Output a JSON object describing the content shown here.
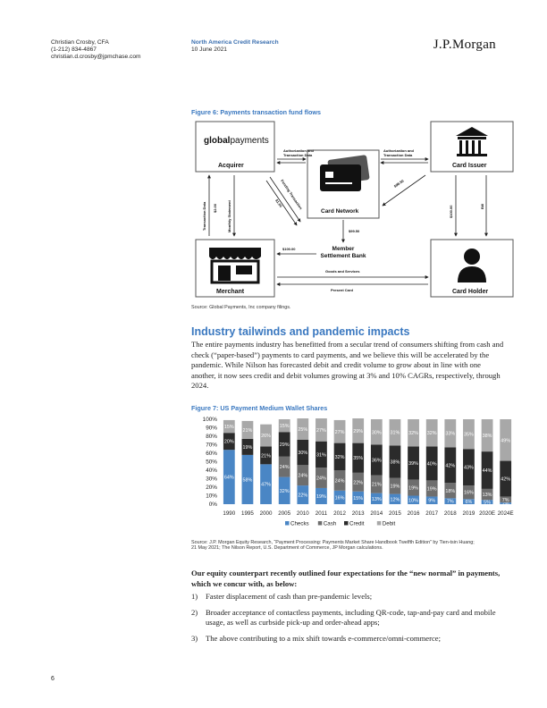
{
  "header": {
    "author_name": "Christian Crosby, CFA",
    "author_phone": "(1-212) 834-4867",
    "author_email": "christian.d.crosby@jpmchase.com",
    "report_name": "North America Credit Research",
    "report_date": "10 June 2021",
    "logo_text": "J.P.Morgan"
  },
  "figure6": {
    "title": "Figure 6: Payments transaction fund flows",
    "source": "Source: Global Payments, Inc company filings.",
    "brand_strong": "global",
    "brand_light": "payments",
    "nodes": {
      "acquirer": "Acquirer",
      "card_issuer": "Card Issuer",
      "card_network": "Card Network",
      "merchant": "Merchant",
      "card_holder": "Card Holder",
      "member_bank_line1": "Member",
      "member_bank_line2": "Settlement Bank"
    },
    "edges": {
      "auth_left_1": "Authorization and",
      "auth_left_2": "Transaction Data",
      "auth_right_1": "Authorization and",
      "auth_right_2": "Transaction Data",
      "funding_transaction": "Funding Transaction",
      "v_1_00": "$1.00",
      "v_98_50": "$98.50",
      "v_99_50": "$99.50",
      "v_100_bank": "$100.00",
      "v_100_holder": "$100.00",
      "bill": "Bill",
      "transaction_data": "Transaction Data",
      "v_2_00": "$2.00",
      "monthly_statement": "Monthly Statement",
      "goods_services": "Goods and Services",
      "present_card": "Present Card"
    }
  },
  "section": {
    "heading": "Industry tailwinds and pandemic impacts",
    "paragraph": "The entire payments industry has benefitted from a secular trend of consumers shifting from cash and check (“paper-based”) payments to card payments, and we believe this will be accelerated by the pandemic. While Nilson has forecasted debit and credit volume to grow about in line with one another, it now sees credit and debit volumes growing at 3% and 10% CAGRs, respectively, through 2024."
  },
  "figure7": {
    "title": "Figure 7: US Payment Medium Wallet Shares",
    "source_line1": "Source: J.P. Morgan Equity Research, “Payment Processing: Payments Market Share Handbook Twelfth Edition” by Tien-tsin Huang;",
    "source_line2": "21 May 2021; The Nilson Report, U.S. Department of Commerce, JP Morgan calculations."
  },
  "chart_data": {
    "type": "bar",
    "stacked": true,
    "percent": true,
    "categories": [
      "1990",
      "1995",
      "2000",
      "2005",
      "2010",
      "2011",
      "2012",
      "2013",
      "2014",
      "2015",
      "2016",
      "2017",
      "2018",
      "2019",
      "2020E",
      "2024E"
    ],
    "series": [
      {
        "name": "Checks",
        "color": "#4a86c5",
        "values": [
          64,
          58,
          47,
          32,
          22,
          19,
          16,
          15,
          13,
          12,
          10,
          9,
          7,
          6,
          5,
          2
        ]
      },
      {
        "name": "Cash",
        "color": "#6e6e6e",
        "values": [
          null,
          null,
          null,
          24,
          24,
          24,
          24,
          22,
          21,
          19,
          19,
          19,
          18,
          16,
          13,
          7
        ]
      },
      {
        "name": "Credit",
        "color": "#2b2b2b",
        "values": [
          20,
          19,
          21,
          29,
          30,
          31,
          32,
          35,
          36,
          38,
          39,
          40,
          42,
          43,
          44,
          42
        ]
      },
      {
        "name": "Debit",
        "color": "#a8a8a8",
        "values": [
          15,
          21,
          26,
          15,
          25,
          27,
          27,
          29,
          30,
          31,
          32,
          32,
          33,
          35,
          38,
          49
        ]
      }
    ],
    "y_ticks": [
      "0%",
      "10%",
      "20%",
      "30%",
      "40%",
      "50%",
      "60%",
      "70%",
      "80%",
      "90%",
      "100%"
    ],
    "ylim": [
      0,
      100
    ],
    "legend_position": "bottom"
  },
  "body": {
    "lead": "Our equity counterpart recently outlined four expectations for the “new normal” in payments, which we concur with, as below:",
    "items": [
      {
        "num": "1)",
        "text": "Faster displacement of cash than pre-pandemic levels;"
      },
      {
        "num": "2)",
        "text": "Broader acceptance of contactless payments, including QR-code, tap-and-pay card and mobile usage, as well as curbside pick-up and order-ahead apps;"
      },
      {
        "num": "3)",
        "text": "The above contributing to a mix shift towards e-commerce/omni-commerce;"
      }
    ]
  },
  "page_number": "6"
}
